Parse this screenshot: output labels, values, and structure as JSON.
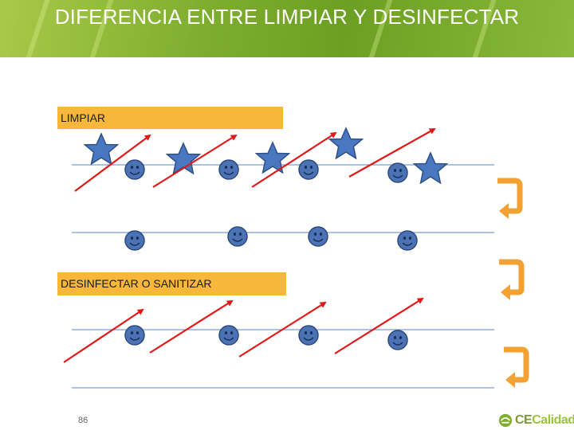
{
  "slide": {
    "title": "DIFERENCIA ENTRE LIMPIAR Y DESINFECTAR",
    "page_number": "86",
    "accent": "#f8b73a",
    "header_color": "#7fae2e"
  },
  "sections": [
    {
      "label": "LIMPIAR"
    },
    {
      "label": "DESINFECTAR O SANITIZAR"
    }
  ],
  "logo": {
    "part1": "CE",
    "part2": "Calidad"
  },
  "icons": {
    "star": "star-icon",
    "smiley": "smiley-icon",
    "arrow": "red-arrow-icon",
    "curved_arrow": "curved-arrow-icon"
  }
}
